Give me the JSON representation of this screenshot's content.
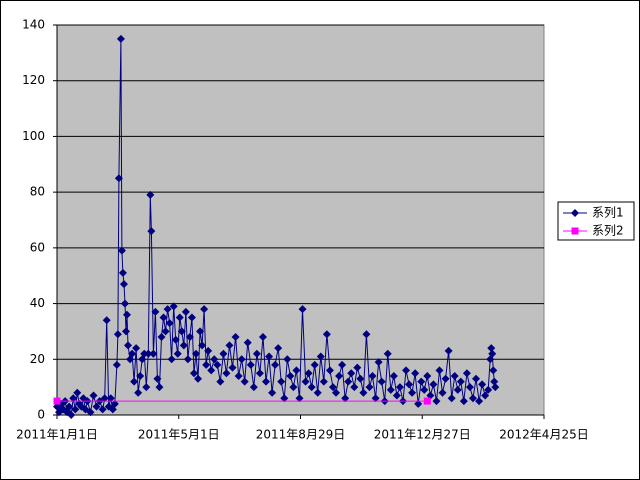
{
  "chart_data": {
    "type": "line",
    "xlim": [
      "2011-01-01",
      "2012-04-25"
    ],
    "xticks": [
      {
        "value": "2011-01-01",
        "label": "2011年1月1日"
      },
      {
        "value": "2011-05-01",
        "label": "2011年5月1日"
      },
      {
        "value": "2011-08-29",
        "label": "2011年8月29日"
      },
      {
        "value": "2011-12-27",
        "label": "2011年12月27日"
      },
      {
        "value": "2012-04-25",
        "label": "2012年4月25日"
      }
    ],
    "ylim": [
      0,
      140
    ],
    "yticks": [
      0,
      20,
      40,
      60,
      80,
      100,
      120,
      140
    ],
    "grid": true,
    "legend": "right",
    "series": [
      {
        "name": "系列1",
        "color": "#000080",
        "marker": "diamond",
        "x": [
          "2011-01-01",
          "2011-01-03",
          "2011-01-05",
          "2011-01-07",
          "2011-01-09",
          "2011-01-11",
          "2011-01-13",
          "2011-01-15",
          "2011-01-17",
          "2011-01-19",
          "2011-01-21",
          "2011-01-23",
          "2011-01-25",
          "2011-01-27",
          "2011-01-29",
          "2011-01-31",
          "2011-02-03",
          "2011-02-06",
          "2011-02-09",
          "2011-02-12",
          "2011-02-15",
          "2011-02-17",
          "2011-02-19",
          "2011-02-21",
          "2011-02-23",
          "2011-02-25",
          "2011-02-27",
          "2011-03-01",
          "2011-03-02",
          "2011-03-03",
          "2011-03-05",
          "2011-03-06",
          "2011-03-07",
          "2011-03-08",
          "2011-03-09",
          "2011-03-10",
          "2011-03-11",
          "2011-03-12",
          "2011-03-14",
          "2011-03-16",
          "2011-03-18",
          "2011-03-20",
          "2011-03-22",
          "2011-03-24",
          "2011-03-26",
          "2011-03-28",
          "2011-03-30",
          "2011-04-01",
          "2011-04-03",
          "2011-04-04",
          "2011-04-06",
          "2011-04-08",
          "2011-04-10",
          "2011-04-12",
          "2011-04-14",
          "2011-04-16",
          "2011-04-18",
          "2011-04-20",
          "2011-04-22",
          "2011-04-24",
          "2011-04-26",
          "2011-04-28",
          "2011-04-30",
          "2011-05-02",
          "2011-05-04",
          "2011-05-06",
          "2011-05-08",
          "2011-05-10",
          "2011-05-12",
          "2011-05-14",
          "2011-05-16",
          "2011-05-18",
          "2011-05-20",
          "2011-05-22",
          "2011-05-24",
          "2011-05-26",
          "2011-05-28",
          "2011-05-30",
          "2011-06-02",
          "2011-06-05",
          "2011-06-08",
          "2011-06-11",
          "2011-06-14",
          "2011-06-17",
          "2011-06-20",
          "2011-06-23",
          "2011-06-26",
          "2011-06-29",
          "2011-07-02",
          "2011-07-05",
          "2011-07-08",
          "2011-07-11",
          "2011-07-14",
          "2011-07-17",
          "2011-07-20",
          "2011-07-23",
          "2011-07-26",
          "2011-07-29",
          "2011-08-01",
          "2011-08-04",
          "2011-08-07",
          "2011-08-10",
          "2011-08-13",
          "2011-08-16",
          "2011-08-19",
          "2011-08-22",
          "2011-08-25",
          "2011-08-28",
          "2011-08-31",
          "2011-09-03",
          "2011-09-06",
          "2011-09-09",
          "2011-09-12",
          "2011-09-15",
          "2011-09-18",
          "2011-09-21",
          "2011-09-24",
          "2011-09-27",
          "2011-09-30",
          "2011-10-03",
          "2011-10-06",
          "2011-10-09",
          "2011-10-12",
          "2011-10-15",
          "2011-10-18",
          "2011-10-21",
          "2011-10-24",
          "2011-10-27",
          "2011-10-30",
          "2011-11-02",
          "2011-11-05",
          "2011-11-08",
          "2011-11-11",
          "2011-11-14",
          "2011-11-17",
          "2011-11-20",
          "2011-11-23",
          "2011-11-26",
          "2011-11-29",
          "2011-12-02",
          "2011-12-05",
          "2011-12-08",
          "2011-12-11",
          "2011-12-14",
          "2011-12-17",
          "2011-12-20",
          "2011-12-23",
          "2011-12-26",
          "2011-12-29",
          "2012-01-01",
          "2012-01-04",
          "2012-01-07",
          "2012-01-10",
          "2012-01-13",
          "2012-01-16",
          "2012-01-19",
          "2012-01-22",
          "2012-01-25",
          "2012-01-28",
          "2012-01-31",
          "2012-02-03",
          "2012-02-06",
          "2012-02-09",
          "2012-02-12",
          "2012-02-15",
          "2012-02-18",
          "2012-02-21",
          "2012-02-24",
          "2012-02-27",
          "2012-03-01",
          "2012-03-03",
          "2012-03-04",
          "2012-03-05",
          "2012-03-06",
          "2012-03-07",
          "2012-03-08"
        ],
        "values": [
          3,
          1,
          4,
          2,
          5,
          1,
          3,
          0,
          6,
          2,
          8,
          4,
          3,
          6,
          2,
          5,
          1,
          7,
          3,
          5,
          2,
          6,
          34,
          3,
          6,
          2,
          4,
          18,
          29,
          85,
          135,
          59,
          51,
          47,
          40,
          30,
          36,
          25,
          20,
          22,
          12,
          24,
          8,
          14,
          20,
          22,
          10,
          22,
          79,
          66,
          22,
          37,
          13,
          10,
          28,
          35,
          30,
          38,
          33,
          20,
          39,
          27,
          22,
          35,
          30,
          25,
          37,
          20,
          28,
          35,
          15,
          22,
          13,
          30,
          25,
          38,
          18,
          23,
          16,
          20,
          18,
          12,
          22,
          15,
          25,
          17,
          28,
          14,
          20,
          12,
          26,
          18,
          10,
          22,
          15,
          28,
          12,
          21,
          8,
          18,
          24,
          12,
          6,
          20,
          14,
          10,
          16,
          6,
          38,
          12,
          15,
          10,
          18,
          8,
          21,
          12,
          29,
          16,
          10,
          8,
          14,
          18,
          6,
          12,
          15,
          10,
          17,
          13,
          8,
          29,
          10,
          14,
          6,
          19,
          12,
          5,
          22,
          9,
          14,
          7,
          10,
          5,
          16,
          11,
          8,
          15,
          4,
          12,
          9,
          14,
          7,
          11,
          5,
          16,
          8,
          13,
          23,
          6,
          14,
          9,
          12,
          5,
          15,
          10,
          6,
          13,
          5,
          11,
          7,
          9,
          20,
          24,
          22,
          16,
          12,
          10
        ]
      },
      {
        "name": "系列2",
        "color": "#ff00ff",
        "marker": "square",
        "x": [
          "2011-01-01",
          "2012-01-01"
        ],
        "values": [
          5,
          5
        ]
      }
    ]
  }
}
